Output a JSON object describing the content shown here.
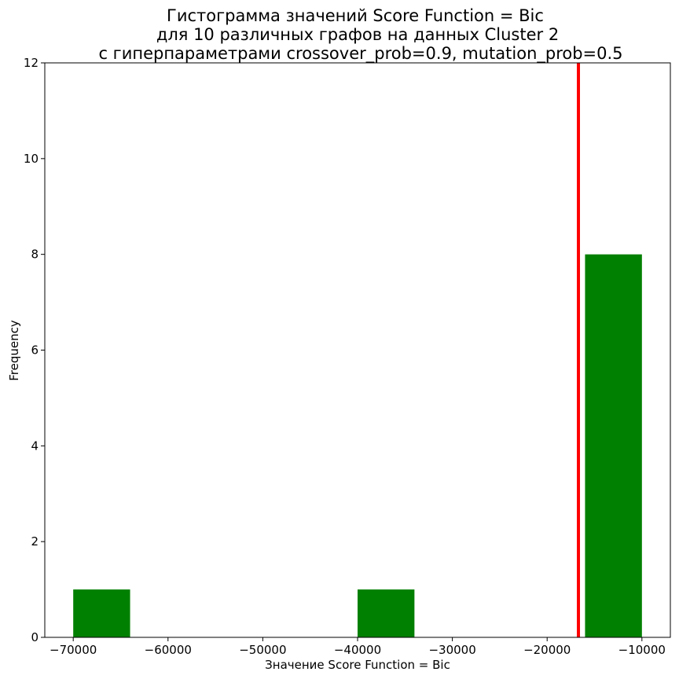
{
  "chart_data": {
    "type": "bar",
    "title_lines": [
      "Гистограмма значений Score Function = Bic",
      "для 10 различных графов на данных Cluster 2",
      "с гиперпараметрами crossover_prob=0.9, mutation_prob=0.5"
    ],
    "xlabel": "Значение Score Function = Bic",
    "ylabel": "Frequency",
    "xlim": [
      -73000,
      -7000
    ],
    "ylim": [
      0,
      12
    ],
    "xticks": [
      -70000,
      -60000,
      -50000,
      -40000,
      -30000,
      -20000,
      -10000
    ],
    "xtick_labels": [
      "−70000",
      "−60000",
      "−50000",
      "−40000",
      "−30000",
      "−20000",
      "−10000"
    ],
    "yticks": [
      0,
      2,
      4,
      6,
      8,
      10,
      12
    ],
    "ytick_labels": [
      "0",
      "2",
      "4",
      "6",
      "8",
      "10",
      "12"
    ],
    "bins": [
      {
        "x0": -70000,
        "x1": -64000,
        "count": 1
      },
      {
        "x0": -40000,
        "x1": -34000,
        "count": 1
      },
      {
        "x0": -16000,
        "x1": -10000,
        "count": 8
      }
    ],
    "reference_line": {
      "x": -16700
    },
    "grid": false,
    "colors": {
      "bars": "#008000",
      "reference_line": "#ff0000"
    }
  }
}
